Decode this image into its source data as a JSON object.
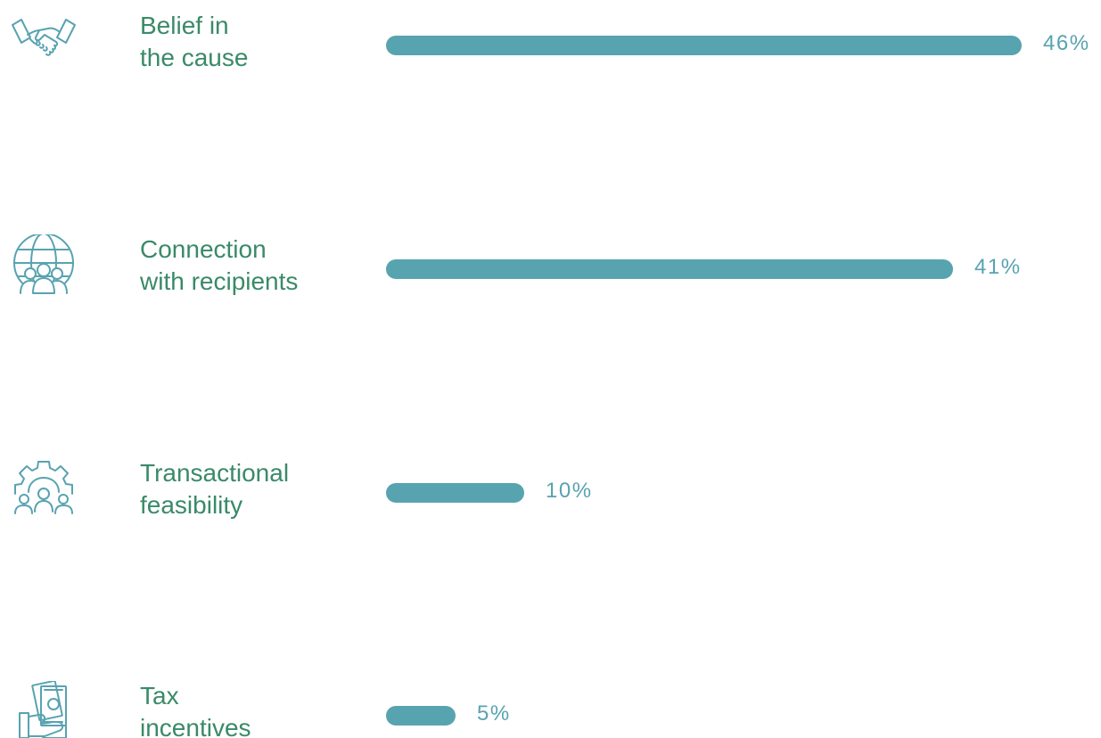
{
  "chart_data": {
    "type": "bar",
    "orientation": "horizontal",
    "categories": [
      [
        "Belief in",
        "the cause"
      ],
      [
        "Connection",
        "with recipients"
      ],
      [
        "Transactional",
        "feasibility"
      ],
      [
        "Tax",
        "incentives"
      ]
    ],
    "values": [
      46,
      41,
      10,
      5
    ],
    "value_labels": [
      "46%",
      "41%",
      "10%",
      "5%"
    ],
    "icons": [
      "handshake-icon",
      "globe-people-icon",
      "gear-people-icon",
      "money-hand-icon"
    ],
    "colors": {
      "bar": "#58a3b0",
      "label": "#3a8a68",
      "value": "#58a3b0",
      "icon": "#58a3b0"
    },
    "grid": false,
    "legend": "none"
  }
}
